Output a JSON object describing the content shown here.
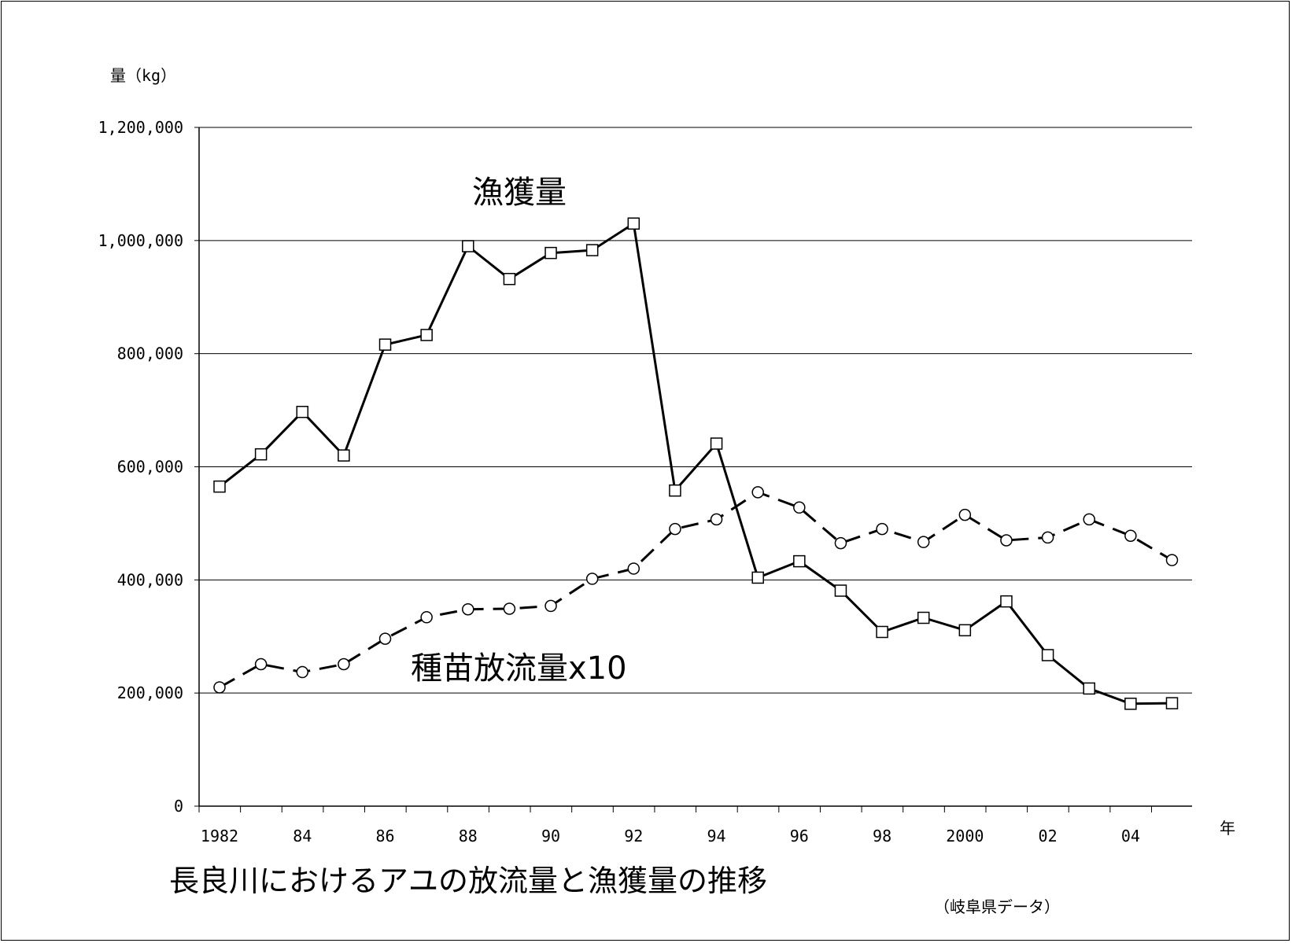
{
  "chart_data": {
    "type": "line",
    "title": "長良川におけるアユの放流量と漁獲量の推移",
    "source": "（岐阜県データ）",
    "ylabel": "量（kg）",
    "xlabel": "年",
    "ylim": [
      0,
      1200000
    ],
    "yticks": [
      0,
      200000,
      400000,
      600000,
      800000,
      1000000,
      1200000
    ],
    "ytick_labels": [
      "0",
      "200,000",
      "400,000",
      "600,000",
      "800,000",
      "1,000,000",
      "1,200,000"
    ],
    "x": [
      1982,
      1983,
      1984,
      1985,
      1986,
      1987,
      1988,
      1989,
      1990,
      1991,
      1992,
      1993,
      1994,
      1995,
      1996,
      1997,
      1998,
      1999,
      2000,
      2001,
      2002,
      2003,
      2004,
      2005
    ],
    "xtick_labels": [
      "1982",
      "",
      "84",
      "",
      "86",
      "",
      "88",
      "",
      "90",
      "",
      "92",
      "",
      "94",
      "",
      "96",
      "",
      "98",
      "",
      "2000",
      "",
      "02",
      "",
      "04",
      ""
    ],
    "grid": true,
    "series": [
      {
        "name": "漁獲量",
        "style": "solid",
        "marker": "square",
        "values": [
          565000,
          622000,
          697000,
          620000,
          816000,
          833000,
          990000,
          932000,
          978000,
          983000,
          1030000,
          558000,
          641000,
          404000,
          433000,
          381000,
          308000,
          333000,
          311000,
          362000,
          267000,
          208000,
          181000,
          182000
        ]
      },
      {
        "name": "種苗放流量x10",
        "style": "dashed",
        "marker": "circle",
        "values": [
          210000,
          251000,
          237000,
          251000,
          296000,
          334000,
          348000,
          349000,
          354000,
          402000,
          420000,
          490000,
          507000,
          555000,
          528000,
          465000,
          490000,
          467000,
          515000,
          470000,
          475000,
          507000,
          478000,
          435000
        ]
      }
    ]
  }
}
